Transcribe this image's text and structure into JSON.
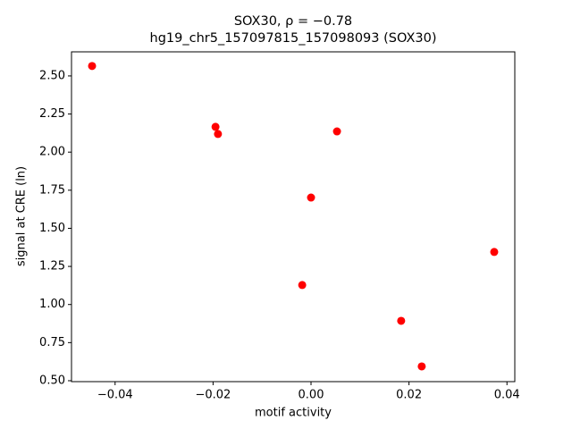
{
  "chart_data": {
    "type": "scatter",
    "title": "SOX30, ρ = −0.78",
    "subtitle": "hg19_chr5_157097815_157098093 (SOX30)",
    "x_label": "motif activity",
    "y_label": "signal at CRE (ln)",
    "color": "#ff0000",
    "x": [
      -0.0447,
      -0.0195,
      -0.019,
      0.0053,
      0.0,
      0.0374,
      -0.0018,
      0.0184,
      0.0226
    ],
    "values": [
      2.565,
      2.166,
      2.119,
      2.136,
      1.702,
      1.345,
      1.128,
      0.893,
      0.594
    ],
    "xlim": [
      -0.0489,
      0.0416
    ],
    "ylim": [
      0.494,
      2.658
    ],
    "xticks": [
      {
        "value": -0.04,
        "label": "−0.04"
      },
      {
        "value": -0.02,
        "label": "−0.02"
      },
      {
        "value": 0,
        "label": "0.00"
      },
      {
        "value": 0.02,
        "label": "0.02"
      },
      {
        "value": 0.04,
        "label": "0.04"
      }
    ],
    "yticks": [
      {
        "value": 0.5,
        "label": "0.50"
      },
      {
        "value": 0.75,
        "label": "0.75"
      },
      {
        "value": 1,
        "label": "1.00"
      },
      {
        "value": 1.25,
        "label": "1.25"
      },
      {
        "value": 1.5,
        "label": "1.50"
      },
      {
        "value": 1.75,
        "label": "1.75"
      },
      {
        "value": 2,
        "label": "2.00"
      },
      {
        "value": 2.25,
        "label": "2.25"
      },
      {
        "value": 2.5,
        "label": "2.50"
      }
    ],
    "grid": false
  }
}
